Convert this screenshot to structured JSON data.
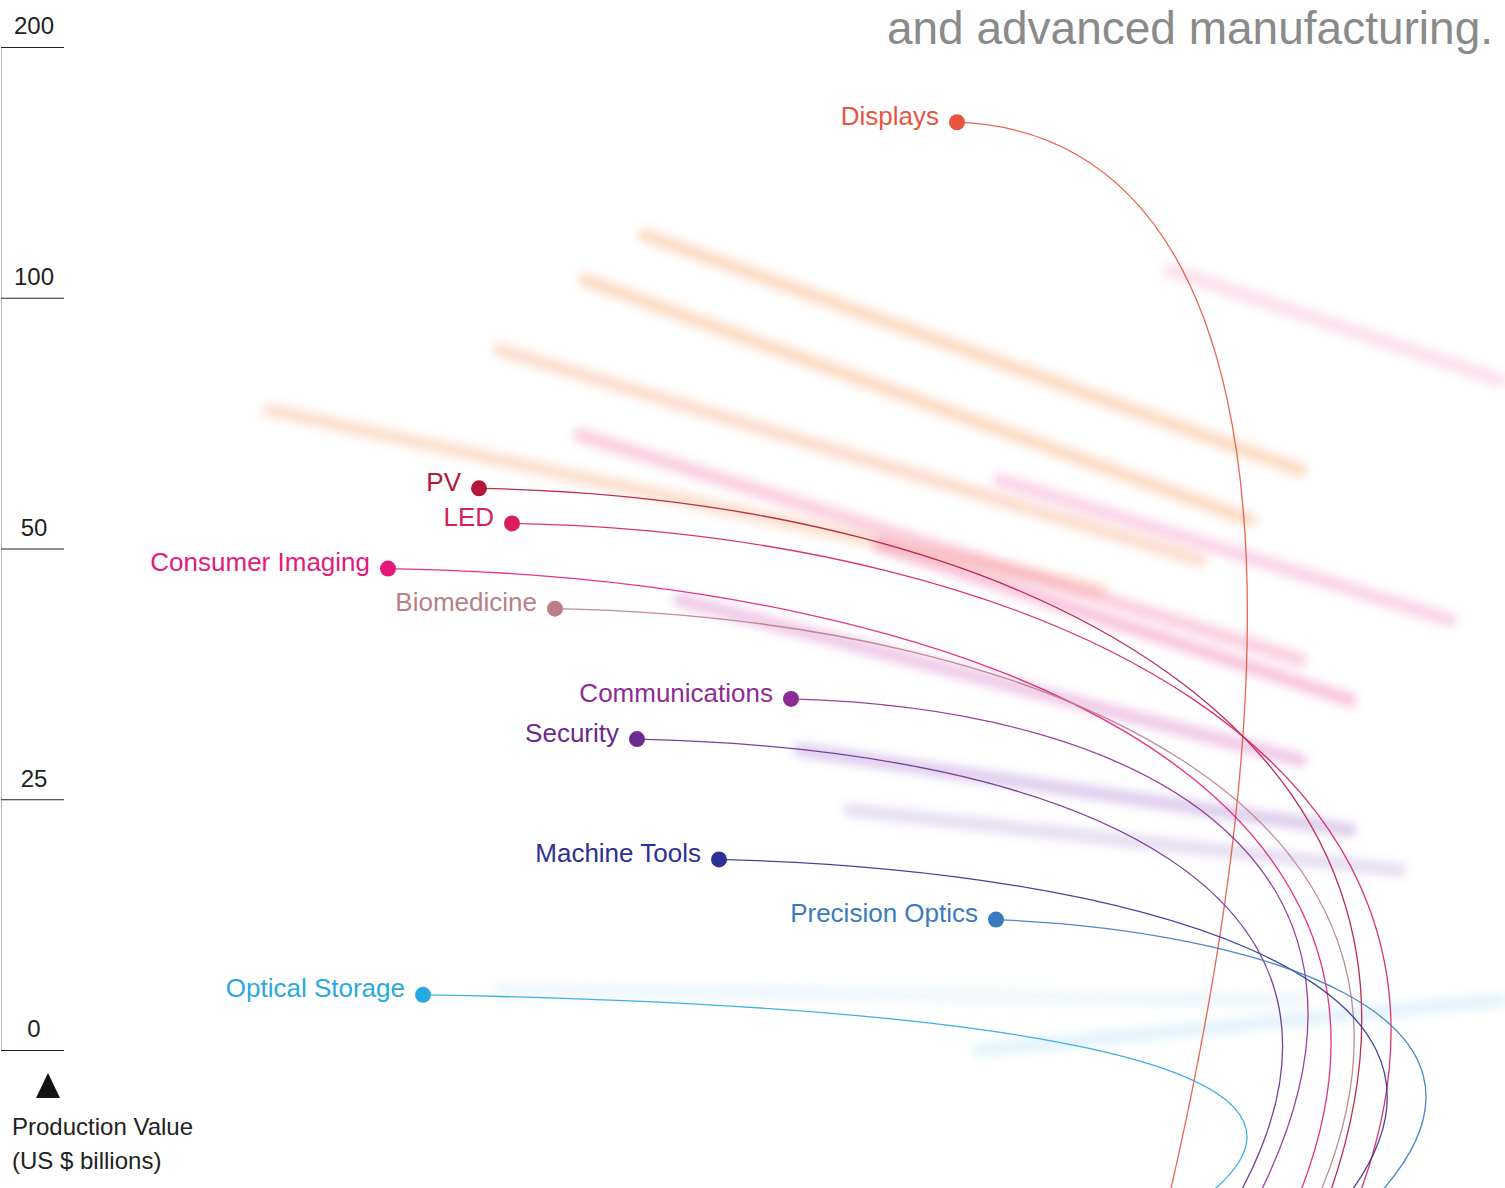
{
  "chart_data": {
    "type": "dot",
    "title": "and advanced manufacturing.",
    "y_label": "Production Value (US $ billions)",
    "categories": [
      "Displays",
      "PV",
      "LED",
      "Consumer Imaging",
      "Biomedicine",
      "Communications",
      "Security",
      "Machine Tools",
      "Precision Optics",
      "Optical Storage"
    ],
    "values": [
      170,
      62,
      55,
      48,
      44,
      35,
      31,
      19,
      13,
      5.5
    ],
    "colors": [
      "#e8543f",
      "#b5163a",
      "#d81f5a",
      "#e6197a",
      "#b97f86",
      "#8e2c96",
      "#6a2a8f",
      "#2e3191",
      "#3a7bbf",
      "#27a9e1"
    ],
    "ylim": [
      0,
      200
    ],
    "yticks": [
      0,
      25,
      50,
      100,
      200
    ],
    "grid": false
  }
}
